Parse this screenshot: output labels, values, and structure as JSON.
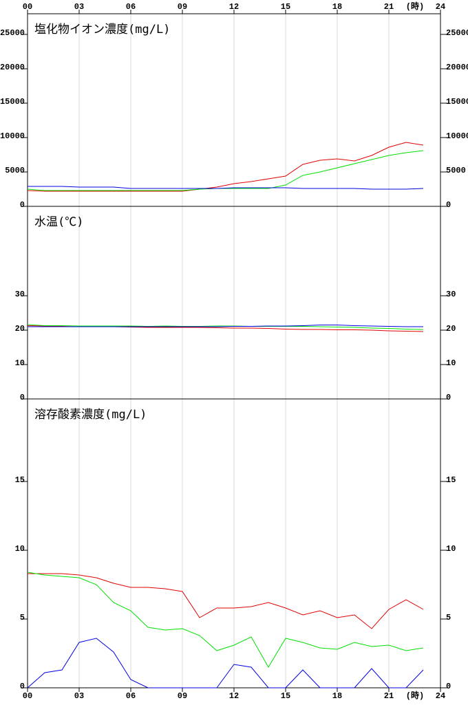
{
  "chart_data": [
    {
      "type": "line",
      "title": "塩化物イオン濃度(mg/L)",
      "x_label": "(時)",
      "x": [
        0,
        1,
        2,
        3,
        4,
        5,
        6,
        7,
        8,
        9,
        10,
        11,
        12,
        13,
        14,
        15,
        16,
        17,
        18,
        19,
        20,
        21,
        22,
        23
      ],
      "xlim": [
        0,
        24
      ],
      "xticks": [
        {
          "value": 0,
          "label": "00"
        },
        {
          "value": 3,
          "label": "03"
        },
        {
          "value": 6,
          "label": "06"
        },
        {
          "value": 9,
          "label": "09"
        },
        12,
        15,
        18,
        21,
        24
      ],
      "ylim": [
        0,
        28000
      ],
      "yticks": [
        0,
        5000,
        10000,
        15000,
        20000,
        25000
      ],
      "grid": true,
      "series": [
        {
          "color": "#e00000",
          "values": [
            2300,
            2200,
            2200,
            2200,
            2200,
            2200,
            2200,
            2200,
            2200,
            2200,
            2500,
            2800,
            3300,
            3600,
            4000,
            4400,
            6100,
            6700,
            6900,
            6600,
            7400,
            8600,
            9300,
            8900
          ]
        },
        {
          "color": "#00e000",
          "values": [
            2500,
            2300,
            2300,
            2300,
            2300,
            2300,
            2300,
            2300,
            2300,
            2300,
            2500,
            2600,
            2600,
            2600,
            2600,
            3100,
            4500,
            5000,
            5600,
            6200,
            6800,
            7400,
            7800,
            8100
          ]
        },
        {
          "color": "#0000e0",
          "values": [
            2900,
            2900,
            2900,
            2800,
            2800,
            2800,
            2600,
            2600,
            2600,
            2600,
            2600,
            2600,
            2700,
            2700,
            2700,
            2700,
            2600,
            2600,
            2600,
            2600,
            2500,
            2500,
            2500,
            2600
          ]
        }
      ]
    },
    {
      "type": "line",
      "title": "水温(℃)",
      "x": [
        0,
        1,
        2,
        3,
        4,
        5,
        6,
        7,
        8,
        9,
        10,
        11,
        12,
        13,
        14,
        15,
        16,
        17,
        18,
        19,
        20,
        21,
        22,
        23
      ],
      "xlim": [
        0,
        24
      ],
      "xticks": [
        {
          "value": 0,
          "label": "00"
        },
        {
          "value": 3,
          "label": "03"
        },
        {
          "value": 6,
          "label": "06"
        },
        {
          "value": 9,
          "label": "09"
        },
        12,
        15,
        18,
        21,
        24
      ],
      "ylim": [
        0,
        56
      ],
      "yticks": [
        0,
        10,
        20,
        30
      ],
      "grid": true,
      "series": [
        {
          "color": "#e00000",
          "values": [
            21.3,
            21.2,
            21.1,
            21.0,
            21.0,
            21.0,
            20.9,
            20.8,
            20.8,
            20.8,
            20.8,
            20.7,
            20.6,
            20.6,
            20.5,
            20.3,
            20.2,
            20.2,
            20.1,
            20.1,
            20.0,
            19.8,
            19.7,
            19.6
          ]
        },
        {
          "color": "#00e000",
          "values": [
            21.6,
            21.3,
            21.3,
            21.2,
            21.2,
            21.2,
            21.2,
            21.1,
            21.2,
            21.1,
            21.1,
            21.2,
            21.2,
            21.1,
            21.1,
            21.1,
            21.1,
            21.0,
            20.9,
            20.8,
            20.6,
            20.5,
            20.3,
            20.2
          ]
        },
        {
          "color": "#0000e0",
          "values": [
            21.0,
            21.0,
            21.0,
            21.0,
            21.0,
            21.0,
            21.0,
            21.0,
            21.0,
            21.0,
            21.0,
            21.0,
            21.1,
            21.1,
            21.2,
            21.2,
            21.3,
            21.5,
            21.5,
            21.3,
            21.2,
            21.1,
            21.0,
            21.0
          ]
        }
      ]
    },
    {
      "type": "line",
      "title": "溶存酸素濃度(mg/L)",
      "x_label": "(時)",
      "x": [
        0,
        1,
        2,
        3,
        4,
        5,
        6,
        7,
        8,
        9,
        10,
        11,
        12,
        13,
        14,
        15,
        16,
        17,
        18,
        19,
        20,
        21,
        22,
        23
      ],
      "xlim": [
        0,
        24
      ],
      "xticks": [
        {
          "value": 0,
          "label": "00"
        },
        {
          "value": 3,
          "label": "03"
        },
        {
          "value": 6,
          "label": "06"
        },
        {
          "value": 9,
          "label": "09"
        },
        12,
        15,
        18,
        21,
        24
      ],
      "ylim": [
        0,
        21
      ],
      "yticks": [
        0,
        5,
        10,
        15
      ],
      "grid": true,
      "series": [
        {
          "color": "#e00000",
          "values": [
            8.3,
            8.3,
            8.3,
            8.2,
            8.0,
            7.6,
            7.3,
            7.3,
            7.2,
            7.0,
            5.1,
            5.8,
            5.8,
            5.9,
            6.2,
            5.8,
            5.3,
            5.6,
            5.1,
            5.3,
            4.3,
            5.7,
            6.4,
            5.7
          ]
        },
        {
          "color": "#00e000",
          "values": [
            8.4,
            8.2,
            8.1,
            8.0,
            7.5,
            6.2,
            5.6,
            4.4,
            4.2,
            4.3,
            3.8,
            2.7,
            3.1,
            3.7,
            1.5,
            3.6,
            3.3,
            2.9,
            2.8,
            3.3,
            3.0,
            3.1,
            2.7,
            2.9
          ]
        },
        {
          "color": "#0000e0",
          "values": [
            0,
            1.1,
            1.3,
            3.3,
            3.6,
            2.6,
            0.6,
            0,
            0,
            0,
            0,
            0,
            1.7,
            1.5,
            0,
            0,
            1.3,
            0,
            0,
            0,
            1.4,
            0,
            0,
            1.3
          ]
        }
      ]
    }
  ]
}
